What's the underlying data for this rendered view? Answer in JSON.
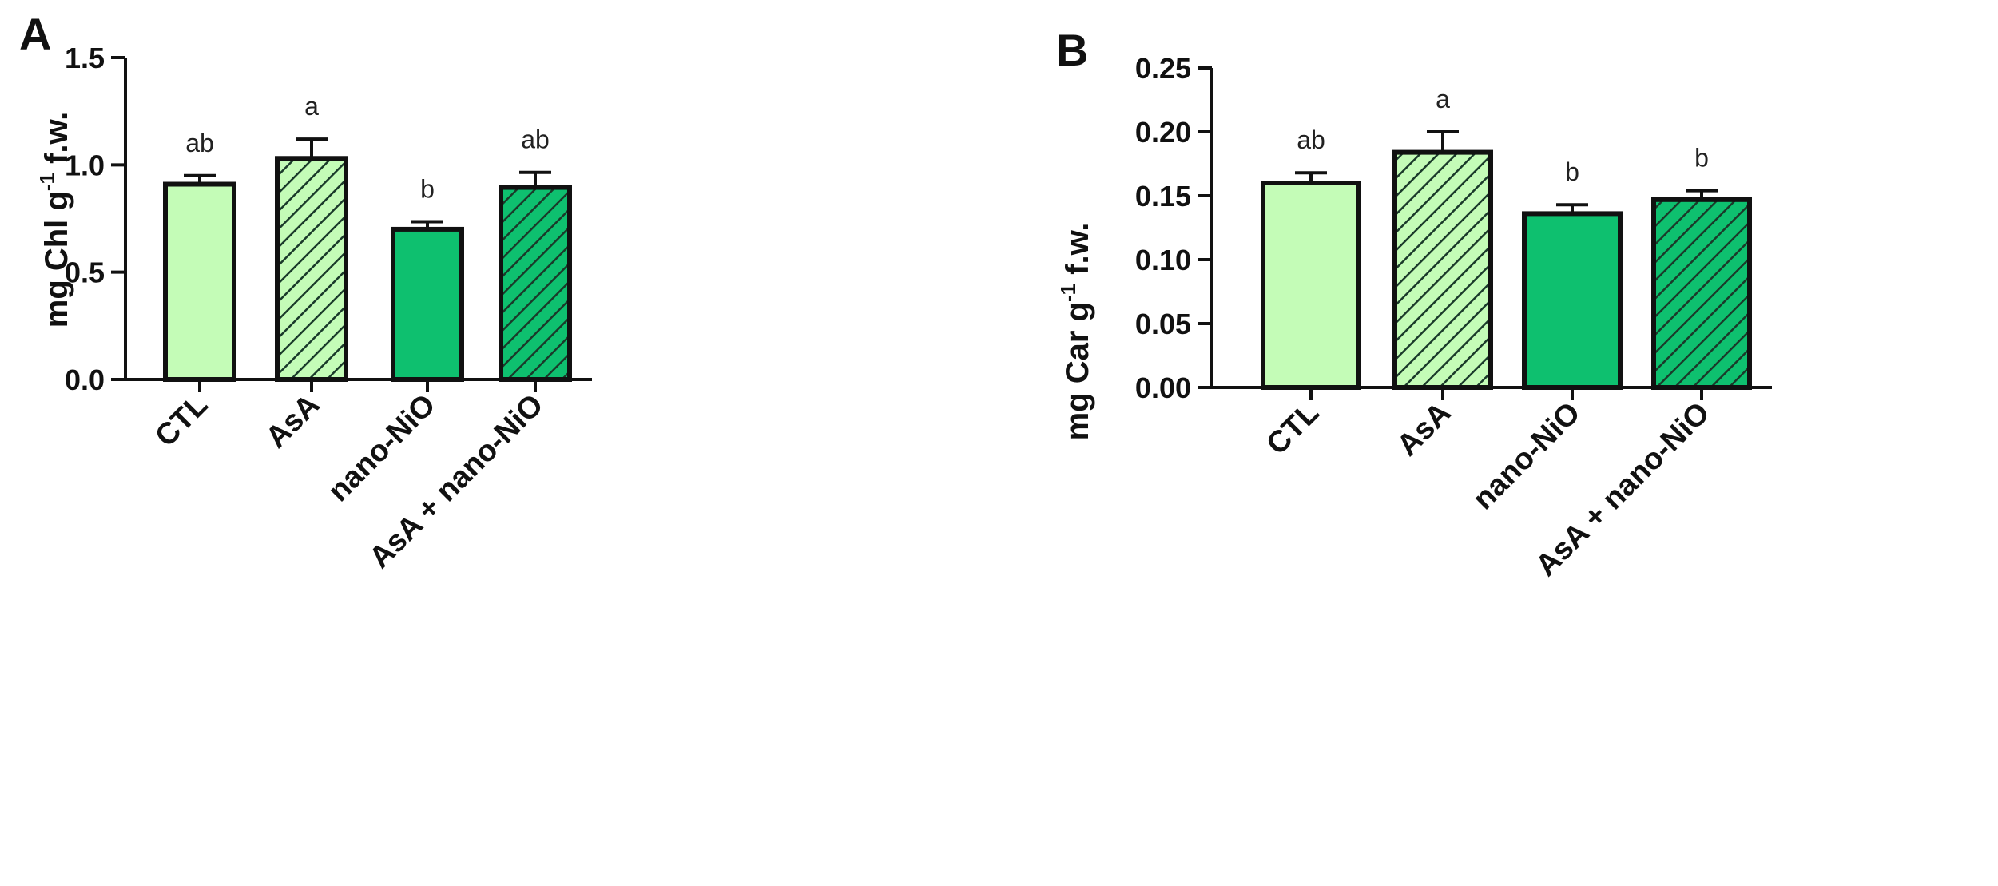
{
  "chart_data": [
    {
      "panel": "A",
      "type": "bar",
      "ylabel_main": "mg Chl g",
      "ylabel_sup": "-1",
      "ylabel_tail": " f.w.",
      "categories": [
        "CTL",
        "AsA",
        "nano-NiO",
        "AsA + nano-NiO"
      ],
      "values": [
        0.91,
        1.03,
        0.7,
        0.895
      ],
      "errors": [
        0.04,
        0.09,
        0.035,
        0.07
      ],
      "significance": [
        "ab",
        "a",
        "b",
        "ab"
      ],
      "ylim": [
        0,
        1.5
      ],
      "ticks": [
        0.0,
        0.5,
        1.0,
        1.5
      ],
      "tick_labels": [
        "0.0",
        "0.5",
        "1.0",
        "1.5"
      ]
    },
    {
      "panel": "B",
      "type": "bar",
      "ylabel_main": "mg Car g",
      "ylabel_sup": "-1",
      "ylabel_tail": " f.w.",
      "categories": [
        "CTL",
        "AsA",
        "nano-NiO",
        "AsA + nano-NiO"
      ],
      "values": [
        0.16,
        0.184,
        0.136,
        0.147
      ],
      "errors": [
        0.008,
        0.016,
        0.007,
        0.007
      ],
      "significance": [
        "ab",
        "a",
        "b",
        "b"
      ],
      "ylim": [
        0,
        0.25
      ],
      "ticks": [
        0.0,
        0.05,
        0.1,
        0.15,
        0.2,
        0.25
      ],
      "tick_labels": [
        "0.00",
        "0.05",
        "0.10",
        "0.15",
        "0.20",
        "0.25"
      ]
    }
  ],
  "colors": {
    "ctl_fill": "#c4fcb7",
    "asa_fill": "#c4fcb7",
    "nano_fill": "#0ec06f",
    "combo_fill": "#0ec06f",
    "hatch": "#1a3a2a",
    "outline": "#111111"
  }
}
